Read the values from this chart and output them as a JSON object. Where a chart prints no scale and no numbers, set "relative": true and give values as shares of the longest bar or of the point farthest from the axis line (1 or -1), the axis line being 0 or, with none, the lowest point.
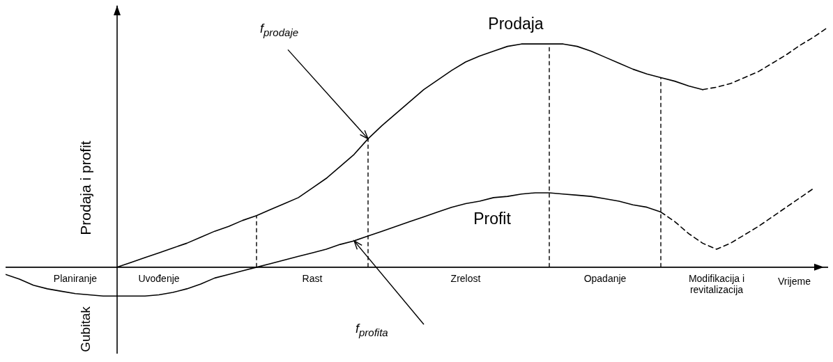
{
  "chart_data": {
    "type": "line",
    "relative": true,
    "ylabel": "Prodaja i profit",
    "xlabel": "Vrijeme",
    "categories": [
      null,
      null,
      null,
      null,
      null,
      "Planiranje",
      null,
      null,
      null,
      null,
      null,
      "Uvođenje",
      null,
      null,
      null,
      null,
      null,
      null,
      null,
      null,
      null,
      null,
      "Rast",
      null,
      null,
      null,
      null,
      null,
      null,
      null,
      null,
      null,
      null,
      "Zrelost",
      null,
      null,
      null,
      null,
      null,
      null,
      null,
      null,
      null,
      "Opadanje",
      null,
      null,
      null,
      null,
      null,
      null,
      null,
      "Modifikacija i revitalizacija",
      null,
      null,
      null,
      null,
      null,
      null,
      null,
      null
    ],
    "series": [
      {
        "name": "Prodaja",
        "color": "#000000",
        "values": [
          null,
          null,
          null,
          null,
          null,
          null,
          null,
          null,
          0,
          0.02,
          0.04,
          0.06,
          0.08,
          0.1,
          0.125,
          0.15,
          0.17,
          0.195,
          0.215,
          0.24,
          0.265,
          0.29,
          0.33,
          0.37,
          0.42,
          0.47,
          0.535,
          0.59,
          0.64,
          0.69,
          0.74,
          0.78,
          0.82,
          0.855,
          0.88,
          0.9,
          0.92,
          0.93,
          0.93,
          0.93,
          0.93,
          0.92,
          0.9,
          0.875,
          0.85,
          0.825,
          0.805,
          0.79,
          0.775,
          0.755,
          0.74,
          null,
          null,
          null,
          null,
          null,
          null,
          null,
          null,
          null
        ]
      },
      {
        "color": "#000000",
        "line_style": "dashed",
        "values": [
          null,
          null,
          null,
          null,
          null,
          null,
          null,
          null,
          null,
          null,
          null,
          null,
          null,
          null,
          null,
          null,
          null,
          null,
          null,
          null,
          null,
          null,
          null,
          null,
          null,
          null,
          null,
          null,
          null,
          null,
          null,
          null,
          null,
          null,
          null,
          null,
          null,
          null,
          null,
          null,
          null,
          null,
          null,
          null,
          null,
          null,
          null,
          null,
          null,
          null,
          0.74,
          0.75,
          0.765,
          0.79,
          0.815,
          0.85,
          0.885,
          0.925,
          0.96,
          1
        ]
      },
      {
        "name": "Profit",
        "color": "#000000",
        "values": [
          -0.03,
          -0.05,
          -0.075,
          -0.09,
          -0.1,
          -0.11,
          -0.115,
          -0.12,
          -0.12,
          -0.12,
          -0.12,
          -0.115,
          -0.105,
          -0.09,
          -0.07,
          -0.045,
          -0.03,
          -0.015,
          0,
          0.015,
          0.03,
          0.045,
          0.06,
          0.075,
          0.095,
          0.11,
          0.13,
          0.15,
          0.17,
          0.19,
          0.21,
          0.23,
          0.25,
          0.265,
          0.275,
          0.29,
          0.295,
          0.305,
          0.31,
          0.31,
          0.305,
          0.3,
          0.295,
          0.285,
          0.275,
          0.26,
          0.25,
          0.23,
          null,
          null,
          null,
          null,
          null,
          null,
          null,
          null,
          null,
          null,
          null,
          null
        ]
      },
      {
        "color": "#000000",
        "line_style": "dashed",
        "values": [
          null,
          null,
          null,
          null,
          null,
          null,
          null,
          null,
          null,
          null,
          null,
          null,
          null,
          null,
          null,
          null,
          null,
          null,
          null,
          null,
          null,
          null,
          null,
          null,
          null,
          null,
          null,
          null,
          null,
          null,
          null,
          null,
          null,
          null,
          null,
          null,
          null,
          null,
          null,
          null,
          null,
          null,
          null,
          null,
          null,
          null,
          null,
          0.23,
          0.19,
          0.14,
          0.1,
          0.075,
          0.1,
          0.135,
          0.17,
          0.21,
          0.25,
          0.29,
          0.33,
          null
        ]
      }
    ],
    "annotations": [
      "f$_{prodaje}$",
      "f$_{profita}$",
      "Gubitak"
    ]
  }
}
